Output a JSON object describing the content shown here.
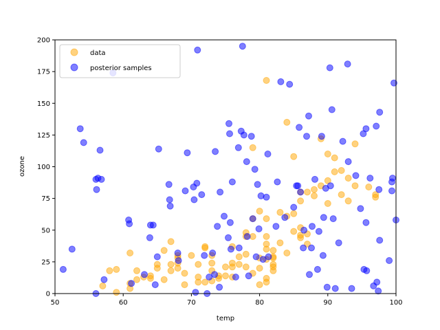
{
  "chart_data": {
    "type": "scatter",
    "title": "",
    "xlabel": "temp",
    "ylabel": "ozone",
    "xlim": [
      50,
      100
    ],
    "ylim": [
      0,
      200
    ],
    "xticks": [
      "50",
      "60",
      "70",
      "80",
      "90",
      "100"
    ],
    "yticks": [
      "0",
      "25",
      "50",
      "75",
      "100",
      "125",
      "150",
      "175",
      "200"
    ],
    "grid": false,
    "legend_position": "top-left",
    "series": [
      {
        "name": "data",
        "color": "#ffa500",
        "points": [
          [
            57,
            6
          ],
          [
            58,
            18
          ],
          [
            59,
            1
          ],
          [
            59,
            19
          ],
          [
            61,
            4
          ],
          [
            61,
            8
          ],
          [
            61,
            32
          ],
          [
            62,
            11
          ],
          [
            62,
            18
          ],
          [
            63,
            13
          ],
          [
            64,
            14
          ],
          [
            64,
            12
          ],
          [
            65,
            20
          ],
          [
            65,
            23
          ],
          [
            66,
            11
          ],
          [
            66,
            34
          ],
          [
            67,
            18
          ],
          [
            67,
            23
          ],
          [
            67,
            41
          ],
          [
            68,
            20
          ],
          [
            68,
            24
          ],
          [
            68,
            28
          ],
          [
            68,
            30
          ],
          [
            69,
            16
          ],
          [
            69,
            7
          ],
          [
            70,
            30
          ],
          [
            71,
            9
          ],
          [
            71,
            13
          ],
          [
            71,
            23
          ],
          [
            72,
            9
          ],
          [
            72,
            36
          ],
          [
            72,
            37
          ],
          [
            73,
            10
          ],
          [
            73,
            18
          ],
          [
            73,
            24
          ],
          [
            73,
            30
          ],
          [
            74,
            12
          ],
          [
            74,
            14
          ],
          [
            75,
            21
          ],
          [
            75,
            14
          ],
          [
            76,
            13
          ],
          [
            76,
            21
          ],
          [
            76,
            24
          ],
          [
            76,
            37
          ],
          [
            77,
            23
          ],
          [
            77,
            29
          ],
          [
            78,
            45
          ],
          [
            78,
            48
          ],
          [
            78,
            31
          ],
          [
            78,
            21
          ],
          [
            79,
            16
          ],
          [
            79,
            45
          ],
          [
            79,
            59
          ],
          [
            79,
            115
          ],
          [
            80,
            7
          ],
          [
            80,
            20
          ],
          [
            80,
            65
          ],
          [
            80,
            28
          ],
          [
            81,
            9
          ],
          [
            81,
            12
          ],
          [
            81,
            27
          ],
          [
            81,
            35
          ],
          [
            81,
            39
          ],
          [
            81,
            45
          ],
          [
            81,
            59
          ],
          [
            81,
            168
          ],
          [
            82,
            18
          ],
          [
            82,
            21
          ],
          [
            82,
            23
          ],
          [
            82,
            28
          ],
          [
            82,
            29
          ],
          [
            82,
            34
          ],
          [
            83,
            40
          ],
          [
            83,
            64
          ],
          [
            84,
            32
          ],
          [
            84,
            61
          ],
          [
            84,
            135
          ],
          [
            85,
            108
          ],
          [
            85,
            49
          ],
          [
            85,
            63
          ],
          [
            86,
            44
          ],
          [
            86,
            46
          ],
          [
            86,
            52
          ],
          [
            86,
            80
          ],
          [
            86,
            73
          ],
          [
            87,
            39
          ],
          [
            87,
            47
          ],
          [
            87,
            80
          ],
          [
            88,
            77
          ],
          [
            88,
            82
          ],
          [
            89,
            85
          ],
          [
            89,
            122
          ],
          [
            90,
            71
          ],
          [
            90,
            89
          ],
          [
            90,
            110
          ],
          [
            91,
            96
          ],
          [
            91,
            107
          ],
          [
            92,
            97
          ],
          [
            92,
            78
          ],
          [
            93,
            91
          ],
          [
            93,
            73
          ],
          [
            94,
            118
          ],
          [
            94,
            85
          ],
          [
            96,
            84
          ],
          [
            97,
            76
          ],
          [
            97,
            78
          ]
        ]
      },
      {
        "name": "posterior samples",
        "color": "#0000ff",
        "points": [
          [
            51.2,
            19
          ],
          [
            52.5,
            35
          ],
          [
            53.7,
            130
          ],
          [
            54.2,
            119
          ],
          [
            56,
            0
          ],
          [
            56,
            90
          ],
          [
            56.1,
            82
          ],
          [
            56.3,
            91
          ],
          [
            56.6,
            113
          ],
          [
            56.8,
            90
          ],
          [
            57.2,
            11
          ],
          [
            58.5,
            174
          ],
          [
            60.8,
            58
          ],
          [
            60.9,
            55
          ],
          [
            61.2,
            8
          ],
          [
            63.1,
            15
          ],
          [
            63.9,
            44
          ],
          [
            64,
            54
          ],
          [
            64.4,
            54
          ],
          [
            64.7,
            7
          ],
          [
            65,
            29
          ],
          [
            65.2,
            114
          ],
          [
            66.7,
            86
          ],
          [
            66.8,
            74
          ],
          [
            66.9,
            69
          ],
          [
            68,
            32
          ],
          [
            68.1,
            26
          ],
          [
            69.1,
            81
          ],
          [
            69.4,
            111
          ],
          [
            70.3,
            84
          ],
          [
            70.4,
            74
          ],
          [
            70.6,
            1
          ],
          [
            70.8,
            87
          ],
          [
            70.9,
            192
          ],
          [
            71.5,
            78
          ],
          [
            71.9,
            30
          ],
          [
            72.3,
            0
          ],
          [
            72.6,
            13
          ],
          [
            73.1,
            32
          ],
          [
            73.4,
            15
          ],
          [
            73.5,
            112
          ],
          [
            73.8,
            53
          ],
          [
            74.1,
            5
          ],
          [
            74.2,
            80
          ],
          [
            74.8,
            61
          ],
          [
            75.4,
            44
          ],
          [
            75.5,
            134
          ],
          [
            75.6,
            126
          ],
          [
            75.7,
            56
          ],
          [
            75.8,
            35
          ],
          [
            76,
            88
          ],
          [
            76.5,
            13
          ],
          [
            76.9,
            115
          ],
          [
            77,
            36
          ],
          [
            77.3,
            128
          ],
          [
            77.5,
            195
          ],
          [
            77.7,
            125
          ],
          [
            78.1,
            104
          ],
          [
            78.2,
            45
          ],
          [
            78.4,
            14
          ],
          [
            78.8,
            124
          ],
          [
            79,
            59
          ],
          [
            79.3,
            98
          ],
          [
            79.5,
            29
          ],
          [
            79.7,
            86
          ],
          [
            79.9,
            51
          ],
          [
            80.2,
            77
          ],
          [
            80.5,
            27
          ],
          [
            81.2,
            110
          ],
          [
            81.3,
            29
          ],
          [
            81,
            76
          ],
          [
            82.4,
            53
          ],
          [
            82.6,
            88
          ],
          [
            83.1,
            167
          ],
          [
            83.7,
            60
          ],
          [
            84.4,
            165
          ],
          [
            85,
            68
          ],
          [
            85.4,
            85
          ],
          [
            85.6,
            85
          ],
          [
            85.8,
            131
          ],
          [
            86,
            80
          ],
          [
            86.4,
            36
          ],
          [
            86.5,
            50
          ],
          [
            86.9,
            124
          ],
          [
            87.2,
            140
          ],
          [
            87.3,
            15
          ],
          [
            87.6,
            36
          ],
          [
            87.7,
            53
          ],
          [
            88.1,
            90
          ],
          [
            88.5,
            19
          ],
          [
            88.7,
            49
          ],
          [
            89.1,
            124
          ],
          [
            89.3,
            30
          ],
          [
            89.4,
            60
          ],
          [
            89.7,
            83
          ],
          [
            89.9,
            5
          ],
          [
            90.4,
            85
          ],
          [
            90.3,
            178
          ],
          [
            90.6,
            145
          ],
          [
            90.8,
            59
          ],
          [
            91.1,
            4
          ],
          [
            91.6,
            40
          ],
          [
            92.2,
            120
          ],
          [
            92.9,
            181
          ],
          [
            93,
            104
          ],
          [
            93.5,
            4
          ],
          [
            94.1,
            93
          ],
          [
            94.8,
            67
          ],
          [
            95.3,
            19
          ],
          [
            95.2,
            126
          ],
          [
            95.6,
            130
          ],
          [
            95.6,
            56
          ],
          [
            95.7,
            18
          ],
          [
            96.2,
            91
          ],
          [
            96.7,
            6
          ],
          [
            97.1,
            132
          ],
          [
            97.2,
            9
          ],
          [
            97.4,
            2
          ],
          [
            97.5,
            82
          ],
          [
            97.6,
            143
          ],
          [
            97.6,
            42
          ],
          [
            99,
            26
          ],
          [
            99.4,
            81
          ],
          [
            99.4,
            88
          ],
          [
            99.5,
            91
          ],
          [
            99.7,
            166
          ],
          [
            100,
            58
          ]
        ]
      }
    ]
  }
}
